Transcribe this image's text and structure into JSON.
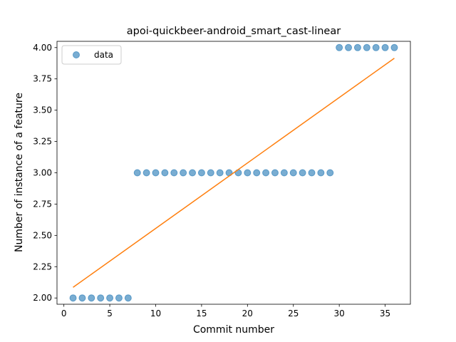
{
  "chart_data": {
    "type": "scatter",
    "title": "apoi-quickbeer-android_smart_cast-linear",
    "xlabel": "Commit number",
    "ylabel": "Number of instance of a feature",
    "xlim": [
      -0.75,
      37.75
    ],
    "ylim": [
      1.95,
      4.05
    ],
    "xticks": [
      0,
      5,
      10,
      15,
      20,
      25,
      30,
      35
    ],
    "yticks": [
      "2.00",
      "2.25",
      "2.50",
      "2.75",
      "3.00",
      "3.25",
      "3.50",
      "3.75",
      "4.00"
    ],
    "legend": {
      "position": "top-left",
      "entries": [
        "data"
      ]
    },
    "grid": false,
    "series": [
      {
        "name": "data",
        "kind": "scatter",
        "color": "#1f77b4",
        "x": [
          1,
          2,
          3,
          4,
          5,
          6,
          7,
          8,
          9,
          10,
          11,
          12,
          13,
          14,
          15,
          16,
          17,
          18,
          19,
          20,
          21,
          22,
          23,
          24,
          25,
          26,
          27,
          28,
          29,
          30,
          31,
          32,
          33,
          34,
          35,
          36
        ],
        "y": [
          2,
          2,
          2,
          2,
          2,
          2,
          2,
          3,
          3,
          3,
          3,
          3,
          3,
          3,
          3,
          3,
          3,
          3,
          3,
          3,
          3,
          3,
          3,
          3,
          3,
          3,
          3,
          3,
          3,
          4,
          4,
          4,
          4,
          4,
          4,
          4
        ]
      },
      {
        "kind": "line",
        "color": "#ff7f0e",
        "x": [
          1,
          36
        ],
        "y": [
          2.085,
          3.915
        ]
      }
    ]
  }
}
